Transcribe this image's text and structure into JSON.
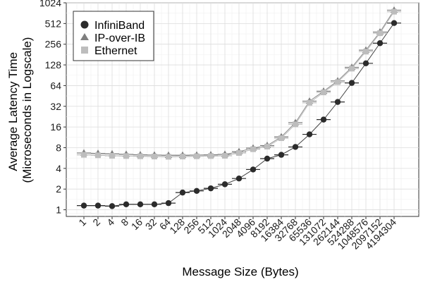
{
  "chart_data": {
    "type": "line",
    "xlabel": "Message Size (Bytes)",
    "ylabel_lines": [
      "Average Latency Time",
      "(Microseconds in Logscale)"
    ],
    "y_scale": "log2",
    "ylim": [
      0.8,
      1024
    ],
    "y_ticks": [
      1,
      2,
      4,
      8,
      16,
      32,
      64,
      128,
      256,
      512,
      1024
    ],
    "y_tick_labels": [
      "1",
      "2",
      "4",
      "8",
      "16",
      "32",
      "64",
      "128",
      "256",
      "512",
      "1024"
    ],
    "categories": [
      "1",
      "2",
      "4",
      "8",
      "16",
      "32",
      "64",
      "128",
      "256",
      "512",
      "1024",
      "2048",
      "4096",
      "8192",
      "16384",
      "32768",
      "65536",
      "131072",
      "262144",
      "524288",
      "1048576",
      "2097152",
      "4194304"
    ],
    "grid": true,
    "legend_position": "top-left",
    "series": [
      {
        "name": "InfiniBand",
        "marker": "circle",
        "color": "#2b2b2b",
        "line_color": "#444444",
        "values": [
          1.15,
          1.15,
          1.13,
          1.2,
          1.2,
          1.2,
          1.25,
          1.78,
          1.88,
          2.05,
          2.35,
          2.85,
          3.85,
          5.55,
          6.3,
          8.2,
          12.5,
          20.5,
          37,
          70,
          135,
          265,
          520
        ]
      },
      {
        "name": "IP-over-IB",
        "marker": "triangle",
        "color": "#7f7f7f",
        "line_color": "#8c8c8c",
        "values": [
          6.7,
          6.6,
          6.5,
          6.4,
          6.3,
          6.25,
          6.2,
          6.2,
          6.25,
          6.3,
          6.4,
          7.0,
          7.9,
          8.6,
          11.5,
          18.5,
          38,
          53,
          75,
          118,
          210,
          385,
          800
        ]
      },
      {
        "name": "Ethernet",
        "marker": "square",
        "color": "#bdbdbd",
        "line_color": "#bdbdbd",
        "values": [
          6.3,
          6.2,
          6.1,
          6.05,
          6.0,
          5.95,
          5.9,
          5.95,
          6.0,
          6.05,
          6.1,
          6.7,
          7.6,
          8.3,
          11.0,
          17.5,
          36,
          51,
          72,
          113,
          200,
          370,
          760
        ]
      }
    ]
  }
}
